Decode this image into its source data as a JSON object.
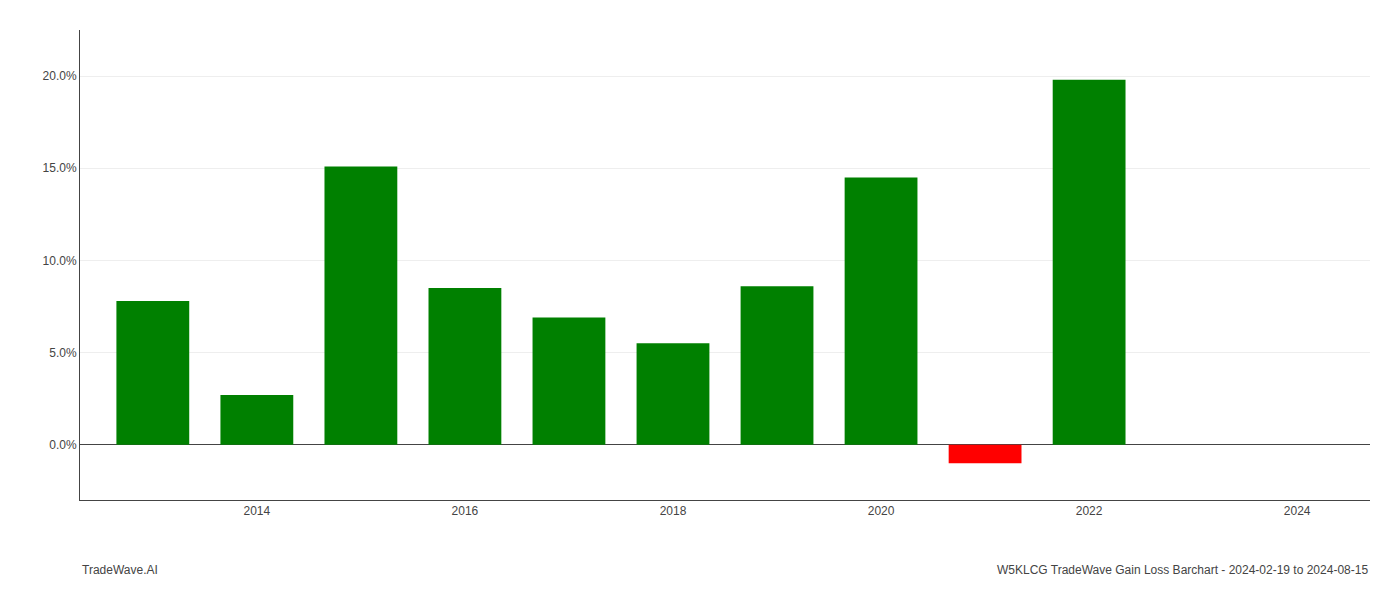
{
  "chart_data": {
    "type": "bar",
    "x": [
      2013,
      2014,
      2015,
      2016,
      2017,
      2018,
      2019,
      2020,
      2021,
      2022
    ],
    "values": [
      0.078,
      0.027,
      0.151,
      0.085,
      0.069,
      0.055,
      0.086,
      0.145,
      -0.01,
      0.198
    ],
    "colors": [
      "#008000",
      "#008000",
      "#008000",
      "#008000",
      "#008000",
      "#008000",
      "#008000",
      "#008000",
      "#ff0000",
      "#008000"
    ],
    "xlim": [
      2012.3,
      2024.7
    ],
    "xticks": [
      2014,
      2016,
      2018,
      2020,
      2022,
      2024
    ],
    "ylim": [
      -0.03,
      0.225
    ],
    "yticks": [
      {
        "value": 0.0,
        "label": "0.0%"
      },
      {
        "value": 0.05,
        "label": "5.0%"
      },
      {
        "value": 0.1,
        "label": "10.0%"
      },
      {
        "value": 0.15,
        "label": "15.0%"
      },
      {
        "value": 0.2,
        "label": "20.0%"
      }
    ],
    "grid": true,
    "annotations": [
      "TradeWave.AI",
      "W5KLCG TradeWave Gain Loss Barchart - 2024-02-19 to 2024-08-15"
    ]
  }
}
